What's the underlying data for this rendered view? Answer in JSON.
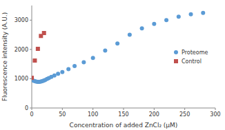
{
  "chart_data": {
    "type": "scatter",
    "xlabel": "Concentration of added ZnCl₂ (μM)",
    "ylabel": "Fluorescence intensity (A.U.)",
    "series": [
      {
        "name": "Proteome",
        "color": "#5b9bd5",
        "marker": "circle",
        "x": [
          0,
          2,
          4,
          6,
          8,
          10,
          12,
          14,
          16,
          18,
          20,
          22,
          25,
          28,
          32,
          37,
          43,
          50,
          60,
          70,
          85,
          100,
          120,
          140,
          160,
          180,
          200,
          220,
          240,
          260,
          280
        ],
        "values": [
          1000,
          940,
          920,
          910,
          900,
          895,
          895,
          900,
          910,
          920,
          940,
          960,
          990,
          1020,
          1060,
          1110,
          1170,
          1230,
          1330,
          1430,
          1560,
          1710,
          1960,
          2200,
          2500,
          2720,
          2870,
          3000,
          3120,
          3200,
          3250
        ]
      },
      {
        "name": "Control",
        "color": "#c0504d",
        "marker": "square",
        "x": [
          0,
          5,
          10,
          15,
          20
        ],
        "values": [
          1030,
          1620,
          2020,
          2460,
          2560
        ]
      }
    ],
    "xlim": [
      0,
      300
    ],
    "ylim": [
      0,
      3500
    ],
    "xticks": [
      0,
      50,
      100,
      150,
      200,
      250,
      300
    ],
    "yticks": [
      0,
      1000,
      2000,
      3000
    ],
    "grid": false,
    "legend": "right"
  }
}
